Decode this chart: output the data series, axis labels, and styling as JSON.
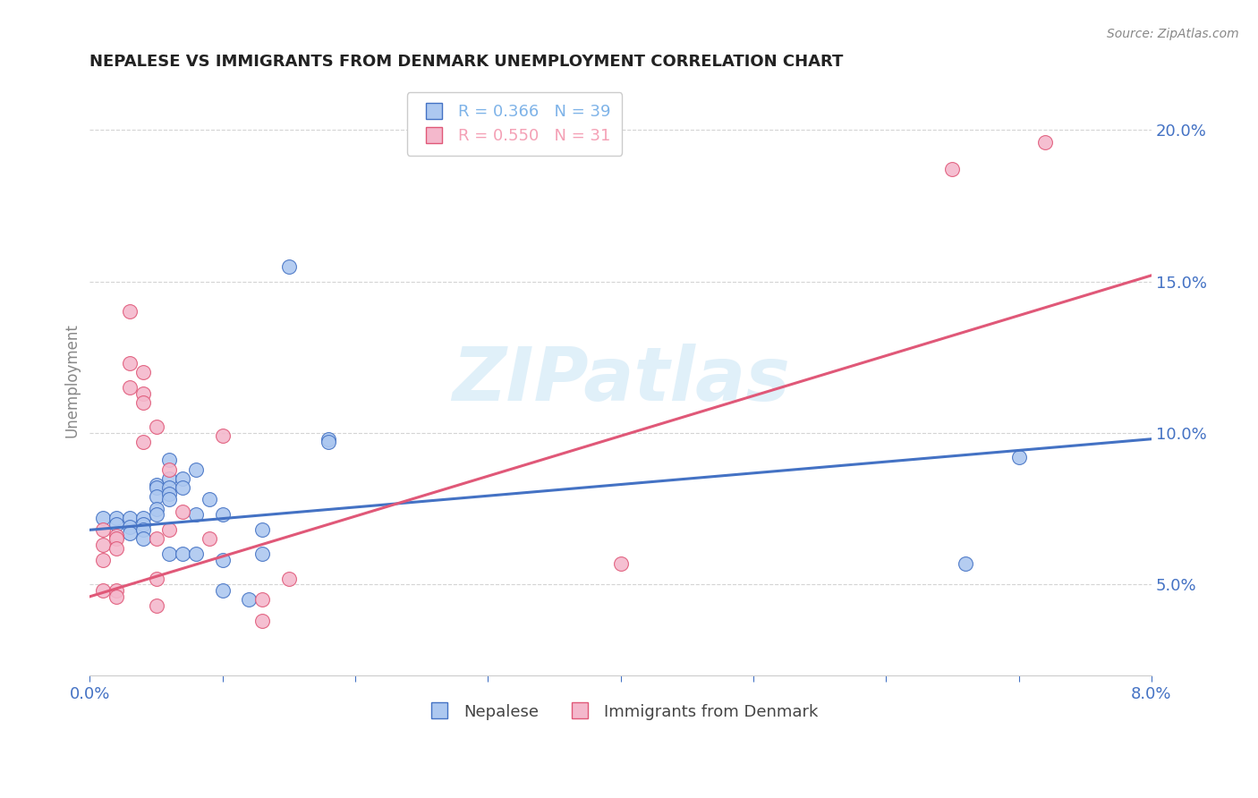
{
  "title": "NEPALESE VS IMMIGRANTS FROM DENMARK UNEMPLOYMENT CORRELATION CHART",
  "source": "Source: ZipAtlas.com",
  "ylabel": "Unemployment",
  "xlim": [
    0.0,
    0.08
  ],
  "ylim": [
    0.02,
    0.215
  ],
  "x_ticks_labeled": [
    0.0,
    0.08
  ],
  "x_ticks_minor": [
    0.01,
    0.02,
    0.03,
    0.04,
    0.05,
    0.06,
    0.07
  ],
  "y_ticks": [
    0.05,
    0.1,
    0.15,
    0.2
  ],
  "watermark": "ZIPatlas",
  "legend_r_n": [
    {
      "label": "R = 0.366   N = 39",
      "color": "#7eb3e8"
    },
    {
      "label": "R = 0.550   N = 31",
      "color": "#f4a0b5"
    }
  ],
  "nepalese_fill": "#adc8f0",
  "nepalese_edge": "#4472c4",
  "denmark_fill": "#f4b8cc",
  "denmark_edge": "#e05878",
  "blue_line_color": "#4472c4",
  "pink_line_color": "#e05878",
  "blue_line": {
    "x0": 0.0,
    "y0": 0.068,
    "x1": 0.08,
    "y1": 0.098
  },
  "pink_line": {
    "x0": 0.0,
    "y0": 0.046,
    "x1": 0.08,
    "y1": 0.152
  },
  "nepalese_points": [
    [
      0.001,
      0.072
    ],
    [
      0.002,
      0.072
    ],
    [
      0.002,
      0.07
    ],
    [
      0.003,
      0.072
    ],
    [
      0.003,
      0.069
    ],
    [
      0.003,
      0.067
    ],
    [
      0.004,
      0.072
    ],
    [
      0.004,
      0.07
    ],
    [
      0.004,
      0.068
    ],
    [
      0.004,
      0.065
    ],
    [
      0.005,
      0.083
    ],
    [
      0.005,
      0.082
    ],
    [
      0.005,
      0.079
    ],
    [
      0.005,
      0.075
    ],
    [
      0.005,
      0.073
    ],
    [
      0.006,
      0.091
    ],
    [
      0.006,
      0.085
    ],
    [
      0.006,
      0.082
    ],
    [
      0.006,
      0.08
    ],
    [
      0.006,
      0.078
    ],
    [
      0.006,
      0.06
    ],
    [
      0.007,
      0.085
    ],
    [
      0.007,
      0.082
    ],
    [
      0.007,
      0.06
    ],
    [
      0.008,
      0.088
    ],
    [
      0.008,
      0.073
    ],
    [
      0.008,
      0.06
    ],
    [
      0.009,
      0.078
    ],
    [
      0.01,
      0.073
    ],
    [
      0.01,
      0.058
    ],
    [
      0.01,
      0.048
    ],
    [
      0.012,
      0.045
    ],
    [
      0.013,
      0.068
    ],
    [
      0.013,
      0.06
    ],
    [
      0.015,
      0.155
    ],
    [
      0.018,
      0.098
    ],
    [
      0.018,
      0.097
    ],
    [
      0.066,
      0.057
    ],
    [
      0.07,
      0.092
    ]
  ],
  "denmark_points": [
    [
      0.001,
      0.068
    ],
    [
      0.001,
      0.063
    ],
    [
      0.001,
      0.058
    ],
    [
      0.001,
      0.048
    ],
    [
      0.002,
      0.066
    ],
    [
      0.002,
      0.065
    ],
    [
      0.002,
      0.062
    ],
    [
      0.002,
      0.048
    ],
    [
      0.002,
      0.046
    ],
    [
      0.003,
      0.14
    ],
    [
      0.003,
      0.123
    ],
    [
      0.003,
      0.115
    ],
    [
      0.004,
      0.12
    ],
    [
      0.004,
      0.113
    ],
    [
      0.004,
      0.11
    ],
    [
      0.004,
      0.097
    ],
    [
      0.005,
      0.102
    ],
    [
      0.005,
      0.065
    ],
    [
      0.005,
      0.052
    ],
    [
      0.005,
      0.043
    ],
    [
      0.006,
      0.088
    ],
    [
      0.006,
      0.068
    ],
    [
      0.007,
      0.074
    ],
    [
      0.009,
      0.065
    ],
    [
      0.01,
      0.099
    ],
    [
      0.013,
      0.045
    ],
    [
      0.013,
      0.038
    ],
    [
      0.015,
      0.052
    ],
    [
      0.04,
      0.057
    ],
    [
      0.065,
      0.187
    ],
    [
      0.072,
      0.196
    ]
  ],
  "legend_nepalese_label": "Nepalese",
  "legend_denmark_label": "Immigrants from Denmark",
  "tick_color": "#4472c4",
  "grid_color": "#d0d0d0",
  "spine_color": "#cccccc",
  "title_color": "#222222",
  "source_color": "#888888",
  "ylabel_color": "#888888"
}
